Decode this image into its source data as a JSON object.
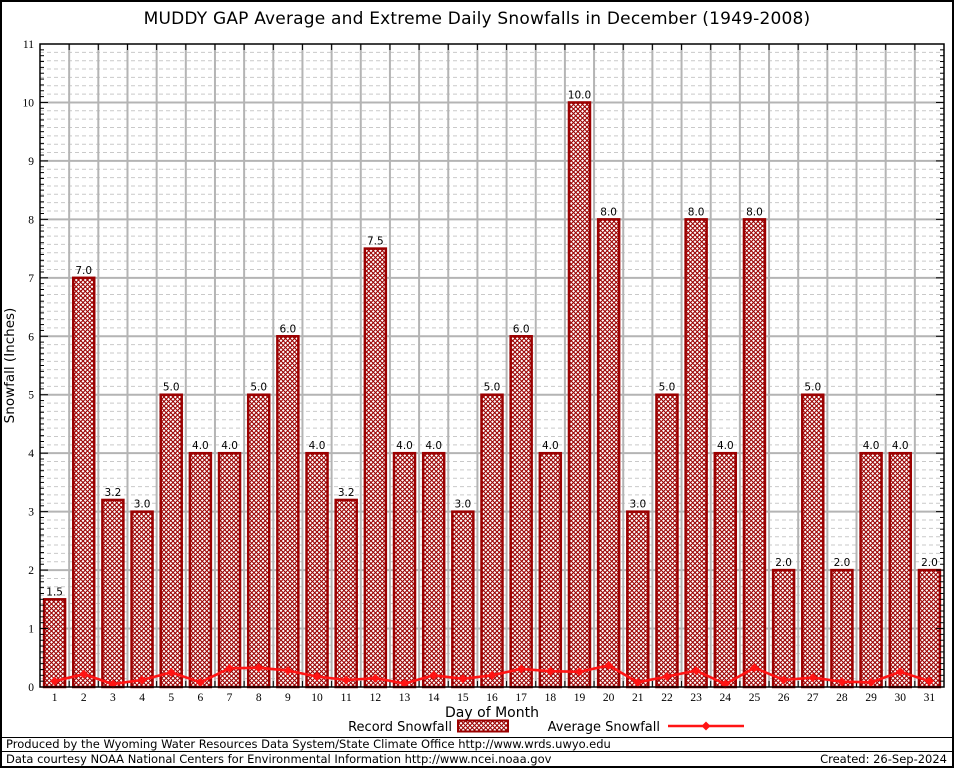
{
  "title": "MUDDY GAP Average and Extreme Daily Snowfalls in December (1949-2008)",
  "chart_data": {
    "type": "bar",
    "title": "MUDDY GAP Average and Extreme Daily Snowfalls in December (1949-2008)",
    "xlabel": "Day of Month",
    "ylabel": "Snowfall (Inches)",
    "ylim": [
      0,
      11
    ],
    "yticks": [
      0,
      1,
      2,
      3,
      4,
      5,
      6,
      7,
      8,
      9,
      10,
      11
    ],
    "categories": [
      1,
      2,
      3,
      4,
      5,
      6,
      7,
      8,
      9,
      10,
      11,
      12,
      13,
      14,
      15,
      16,
      17,
      18,
      19,
      20,
      21,
      22,
      23,
      24,
      25,
      26,
      27,
      28,
      29,
      30,
      31
    ],
    "grid": "major solid gray, minor dashed light gray",
    "legend_position": "bottom",
    "series": [
      {
        "name": "Record Snowfall",
        "type": "bar",
        "style": "dark-red crosshatch",
        "values": [
          1.5,
          7.0,
          3.2,
          3.0,
          5.0,
          4.0,
          4.0,
          5.0,
          6.0,
          4.0,
          3.2,
          7.5,
          4.0,
          4.0,
          3.0,
          5.0,
          6.0,
          4.0,
          10.0,
          8.0,
          3.0,
          5.0,
          8.0,
          4.0,
          8.0,
          2.0,
          5.0,
          2.0,
          4.0,
          4.0,
          2.0
        ],
        "data_labels": [
          "1.5",
          "7.0",
          "3.2",
          "3.0",
          "5.0",
          "4.0",
          "4.0",
          "5.0",
          "6.0",
          "4.0",
          "3.2",
          "7.5",
          "4.0",
          "4.0",
          "3.0",
          "5.0",
          "6.0",
          "4.0",
          "10.0",
          "8.0",
          "3.0",
          "5.0",
          "8.0",
          "4.0",
          "8.0",
          "2.0",
          "5.0",
          "2.0",
          "4.0",
          "4.0",
          "2.0"
        ]
      },
      {
        "name": "Average Snowfall",
        "type": "line",
        "style": "red line with diamond markers",
        "values": [
          0.1,
          0.22,
          0.05,
          0.12,
          0.25,
          0.08,
          0.32,
          0.33,
          0.28,
          0.18,
          0.12,
          0.15,
          0.06,
          0.2,
          0.14,
          0.2,
          0.31,
          0.27,
          0.26,
          0.37,
          0.08,
          0.18,
          0.28,
          0.05,
          0.33,
          0.12,
          0.16,
          0.09,
          0.08,
          0.26,
          0.1
        ]
      }
    ],
    "colors": {
      "bar_border": "#9b0000",
      "bar_hatch": "#9b0000",
      "avg_line": "#ff1414",
      "major_grid": "#b4b4b4",
      "minor_grid": "#c9c9c9",
      "axis": "#000000"
    }
  },
  "footer": {
    "line1": "Produced by the Wyoming Water Resources Data System/State Climate Office http://www.wrds.uwyo.edu",
    "line2": "Data courtesy NOAA National Centers for Environmental Information http://www.ncei.noaa.gov",
    "created": "Created: 26-Sep-2024"
  }
}
